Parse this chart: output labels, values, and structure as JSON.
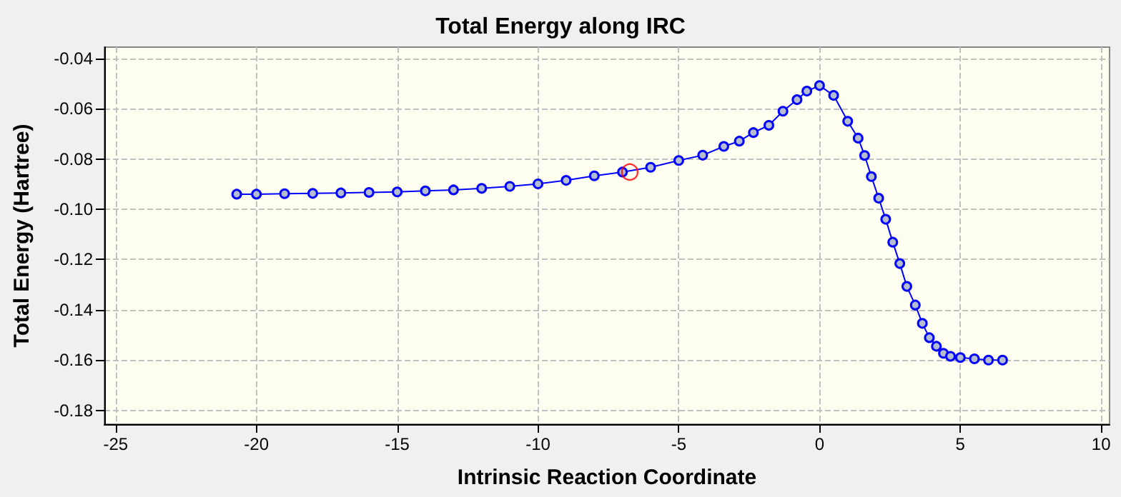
{
  "chart_data": {
    "type": "line",
    "title": "Total Energy along IRC",
    "xlabel": "Intrinsic Reaction Coordinate",
    "ylabel": "Total Energy (Hartree)",
    "xlim": [
      -25.4,
      10.3
    ],
    "xticks": [
      -25,
      -20,
      -15,
      -10,
      -5,
      0,
      5,
      10
    ],
    "ylim": [
      -0.1855,
      -0.0355
    ],
    "yticks": [
      {
        "value": -0.04,
        "label": "-0.04"
      },
      {
        "value": -0.06,
        "label": "-0.06"
      },
      {
        "value": -0.08,
        "label": "-0.08"
      },
      {
        "value": -0.1,
        "label": "-0.10"
      },
      {
        "value": -0.12,
        "label": "-0.12"
      },
      {
        "value": -0.14,
        "label": "-0.14"
      },
      {
        "value": -0.16,
        "label": "-0.16"
      },
      {
        "value": -0.18,
        "label": "-0.18"
      }
    ],
    "grid": true,
    "marker": "circle",
    "line_style": "solid",
    "series": [
      {
        "color": "#0000ff",
        "x": [
          -20.7,
          -20,
          -19,
          -18,
          -17,
          -16,
          -15,
          -14,
          -13,
          -12,
          -11,
          -10,
          -9,
          -8,
          -7,
          -6,
          -5,
          -4.15,
          -3.4,
          -2.85,
          -2.35,
          -1.8,
          -1.3,
          -0.8,
          -0.45,
          0,
          0.5,
          1.0,
          1.37,
          1.6,
          1.84,
          2.1,
          2.35,
          2.6,
          2.85,
          3.1,
          3.4,
          3.65,
          3.9,
          4.15,
          4.4,
          4.65,
          5.0,
          5.5,
          6.0,
          6.5
        ],
        "values": [
          -0.094,
          -0.094,
          -0.0938,
          -0.0937,
          -0.0935,
          -0.0933,
          -0.0931,
          -0.0927,
          -0.0923,
          -0.0917,
          -0.0909,
          -0.0899,
          -0.0885,
          -0.0867,
          -0.0852,
          -0.0833,
          -0.0806,
          -0.0785,
          -0.075,
          -0.0729,
          -0.0695,
          -0.0666,
          -0.061,
          -0.0564,
          -0.053,
          -0.0508,
          -0.0547,
          -0.065,
          -0.0717,
          -0.0786,
          -0.087,
          -0.0956,
          -0.104,
          -0.1131,
          -0.1216,
          -0.1307,
          -0.1381,
          -0.1454,
          -0.1511,
          -0.1545,
          -0.1573,
          -0.1585,
          -0.159,
          -0.1595,
          -0.16,
          -0.16
        ]
      },
      {
        "type": "scatter",
        "color": "#ff0000",
        "x": [
          -6.74
        ],
        "values": [
          -0.0852
        ]
      }
    ]
  }
}
